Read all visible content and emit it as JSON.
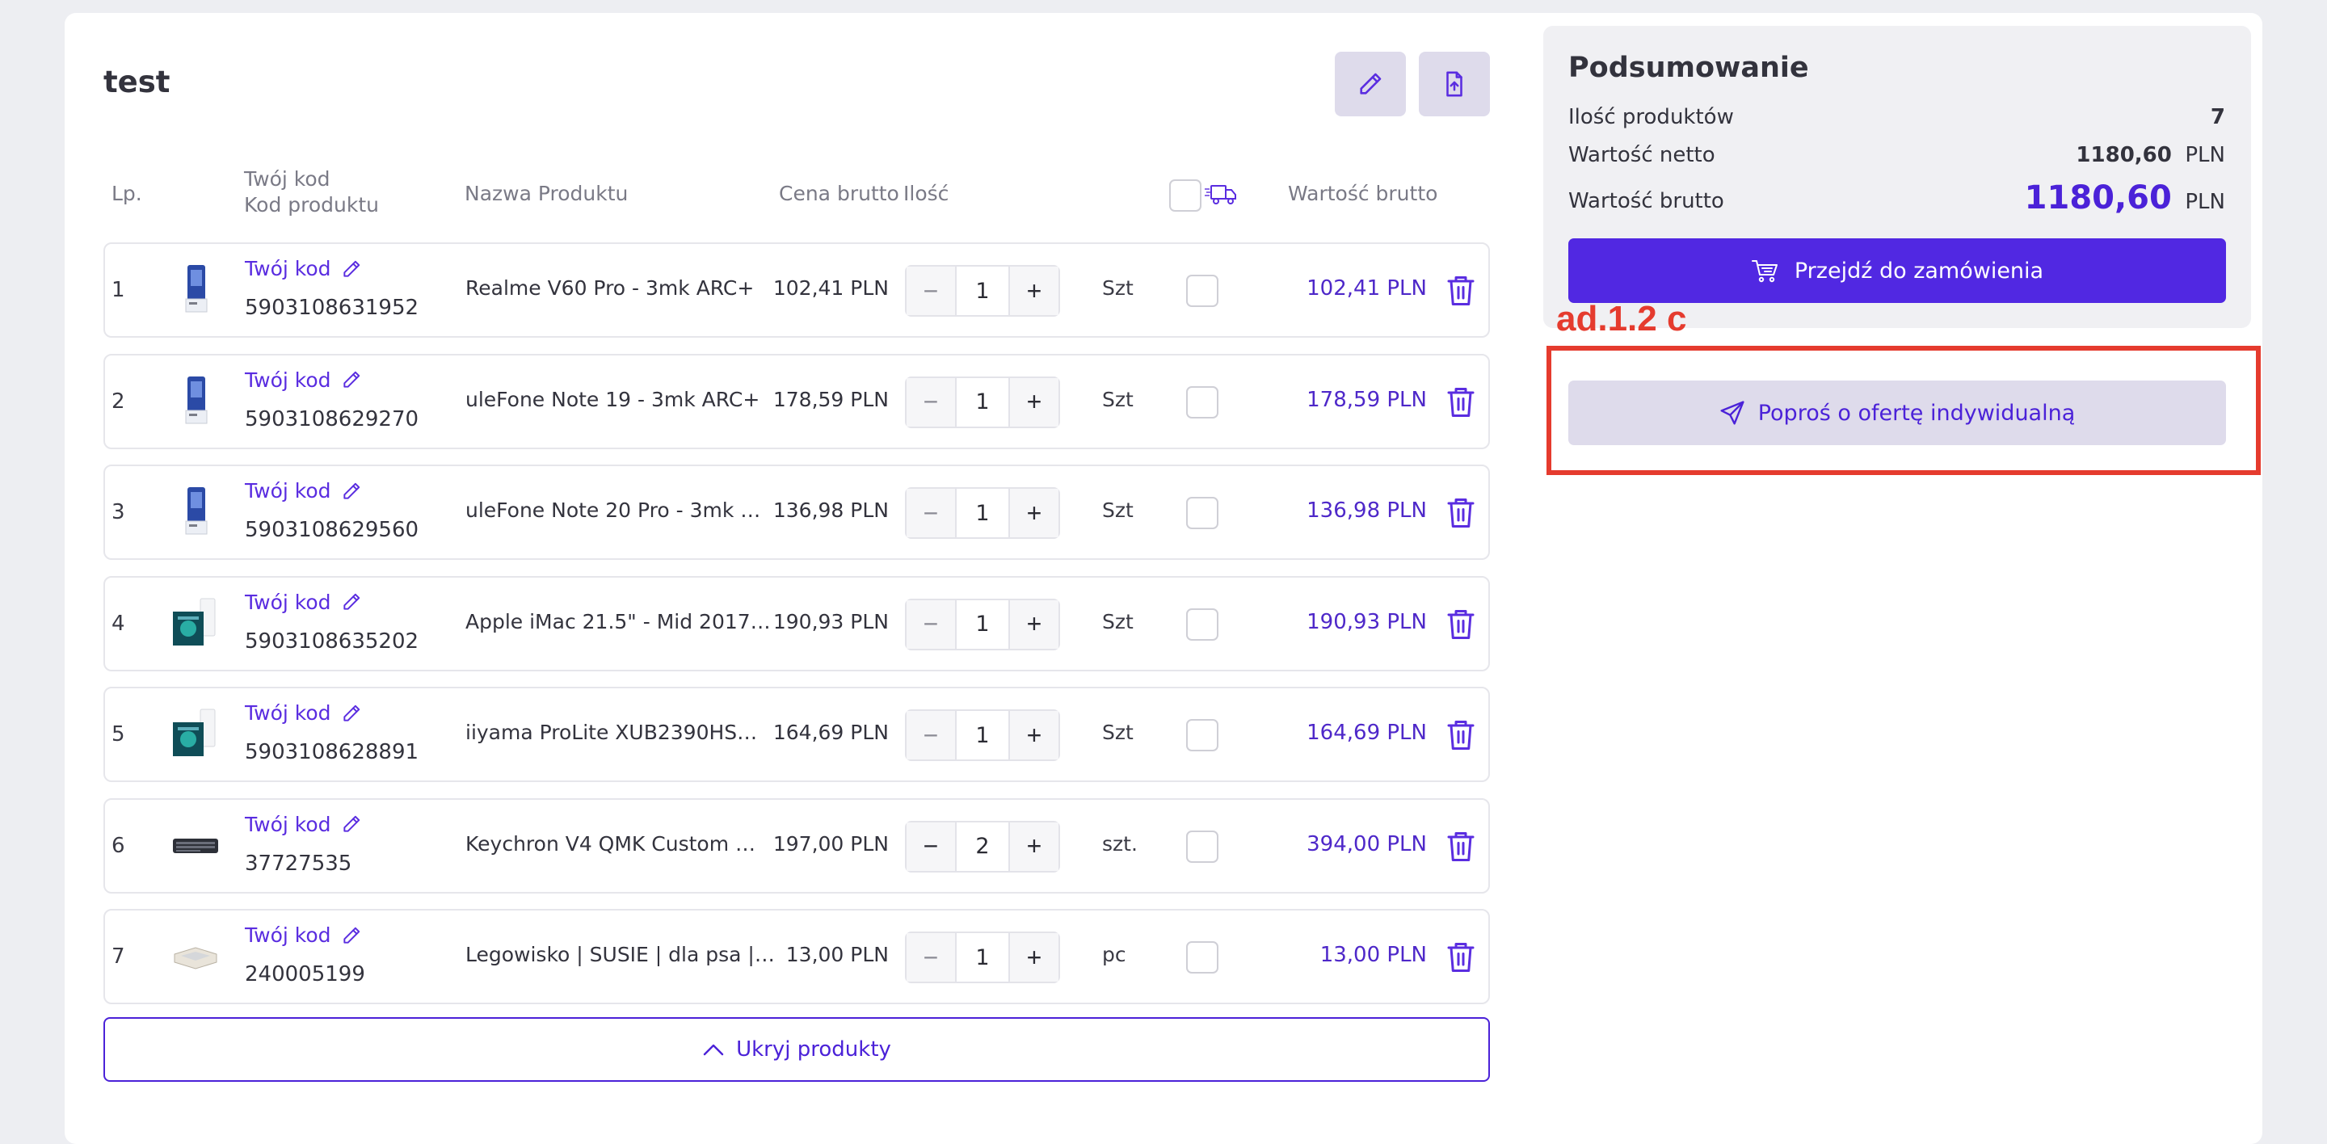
{
  "list": {
    "title": "test",
    "edit_icon": "pencil-icon",
    "export_icon": "file-upload-icon"
  },
  "table": {
    "headers": {
      "lp": "Lp.",
      "your_code": "Twój kod",
      "product_code": "Kod produktu",
      "name": "Nazwa Produktu",
      "price": "Cena brutto",
      "qty": "Ilość",
      "value": "Wartość brutto"
    },
    "rows": [
      {
        "lp": "1",
        "code_label": "Twój kod",
        "code": "5903108631952",
        "name": "Realme V60 Pro - 3mk ARC+",
        "price": "102,41 PLN",
        "qty": "1",
        "unit": "Szt",
        "total": "102,41 PLN",
        "thumb": "phone-case"
      },
      {
        "lp": "2",
        "code_label": "Twój kod",
        "code": "5903108629270",
        "name": "uleFone Note 19 - 3mk ARC+",
        "price": "178,59 PLN",
        "qty": "1",
        "unit": "Szt",
        "total": "178,59 PLN",
        "thumb": "phone-case"
      },
      {
        "lp": "3",
        "code_label": "Twój kod",
        "code": "5903108629560",
        "name": "uleFone Note 20 Pro - 3mk …",
        "price": "136,98 PLN",
        "qty": "1",
        "unit": "Szt",
        "total": "136,98 PLN",
        "thumb": "phone-case"
      },
      {
        "lp": "4",
        "code_label": "Twój kod",
        "code": "5903108635202",
        "name": "Apple iMac 21.5\" - Mid 2017…",
        "price": "190,93 PLN",
        "qty": "1",
        "unit": "Szt",
        "total": "190,93 PLN",
        "thumb": "screen-protector"
      },
      {
        "lp": "5",
        "code_label": "Twój kod",
        "code": "5903108628891",
        "name": "iiyama ProLite XUB2390HS…",
        "price": "164,69 PLN",
        "qty": "1",
        "unit": "Szt",
        "total": "164,69 PLN",
        "thumb": "screen-protector"
      },
      {
        "lp": "6",
        "code_label": "Twój kod",
        "code": "37727535",
        "name": "Keychron V4 QMK Custom …",
        "price": "197,00 PLN",
        "qty": "2",
        "unit": "szt.",
        "total": "394,00 PLN",
        "thumb": "keyboard"
      },
      {
        "lp": "7",
        "code_label": "Twój kod",
        "code": "240005199",
        "name": "Legowisko | SUSIE | dla psa |…",
        "price": "13,00 PLN",
        "qty": "1",
        "unit": "pc",
        "total": "13,00 PLN",
        "thumb": "pet-bed"
      }
    ],
    "hide_label": "Ukryj produkty"
  },
  "summary": {
    "title": "Podsumowanie",
    "count_label": "Ilość produktów",
    "count_value": "7",
    "net_label": "Wartość netto",
    "net_value": "1180,60",
    "net_currency": "PLN",
    "gross_label": "Wartość brutto",
    "gross_value": "1180,60",
    "gross_currency": "PLN",
    "order_label": "Przejdź do zamówienia",
    "offer_label": "Poproś o ofertę indywidualną"
  },
  "annotation": {
    "label": "ad.1.2 c",
    "color": "#e53b2e"
  },
  "colors": {
    "accent": "#5128e2",
    "link": "#5a2de0"
  }
}
